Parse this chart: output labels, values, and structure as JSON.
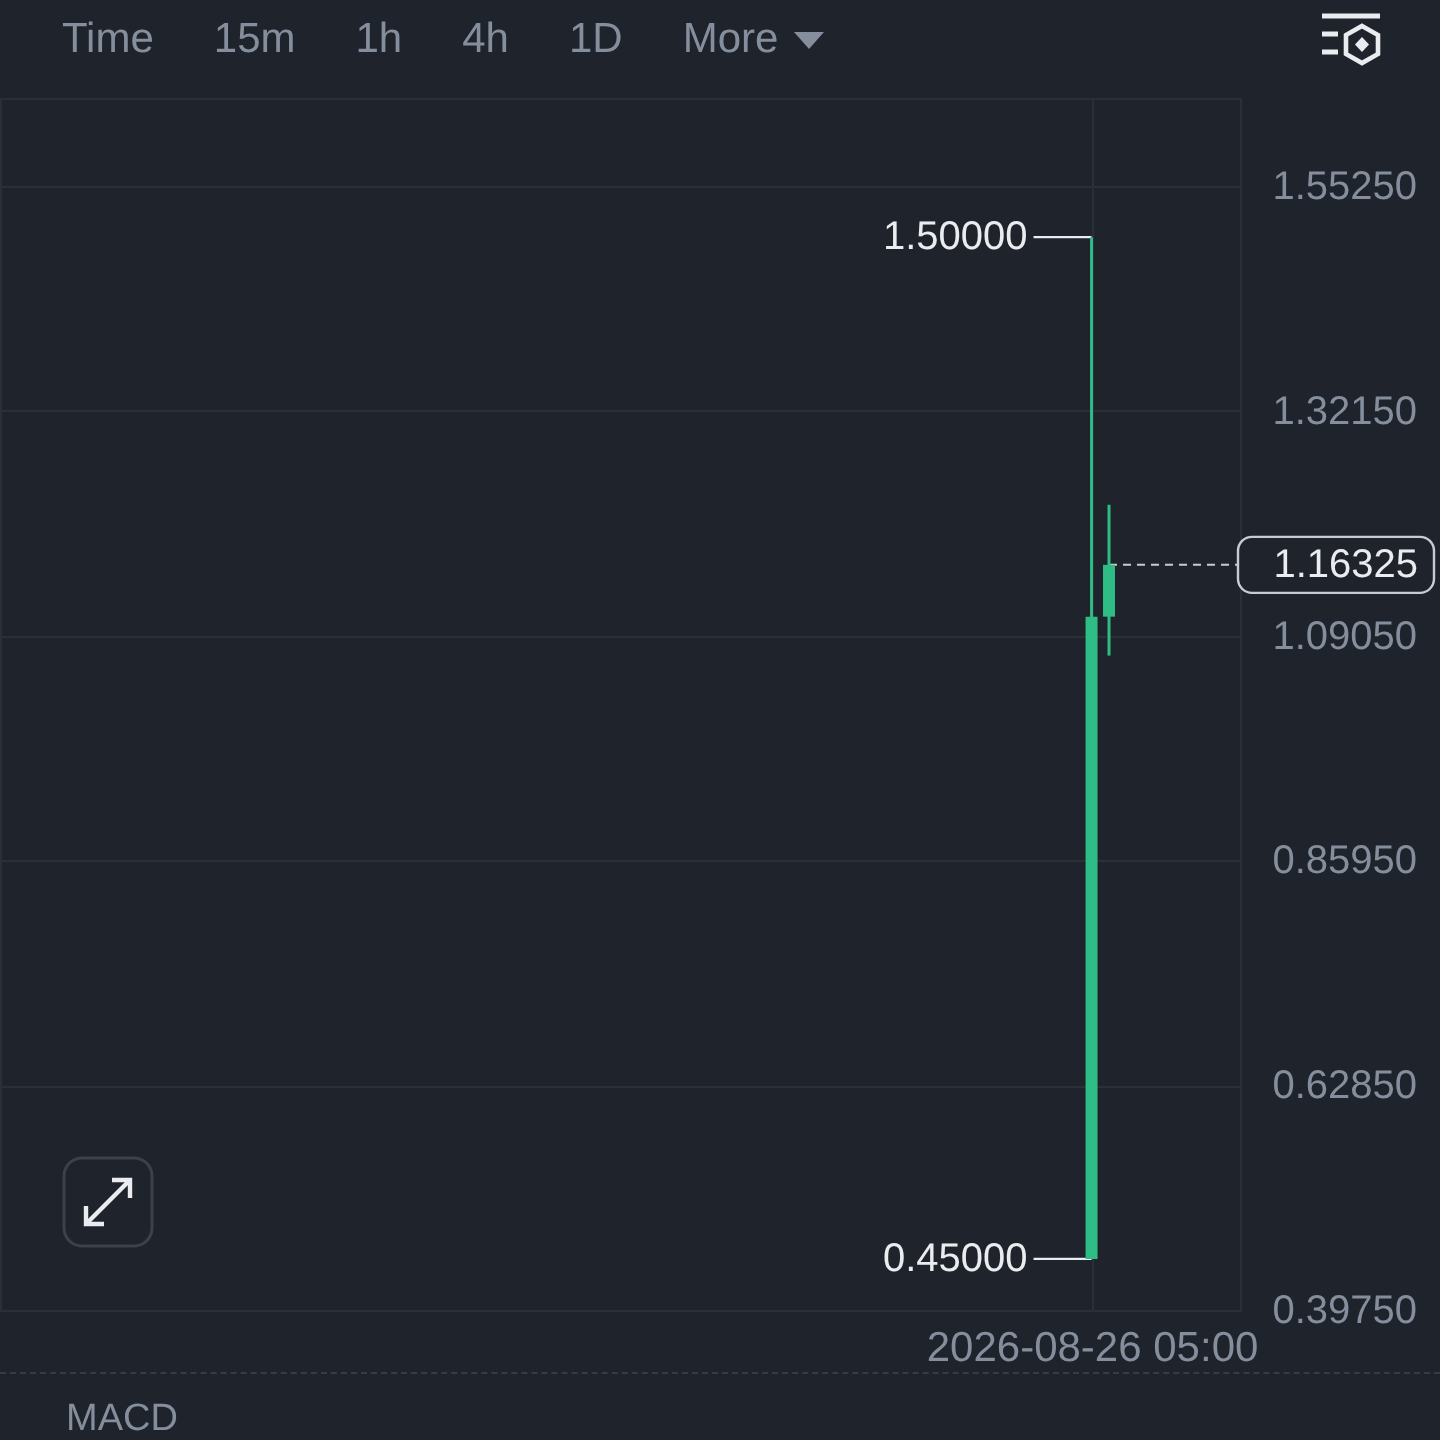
{
  "chart_data": {
    "type": "candlestick",
    "categories": [
      null,
      null,
      null,
      null,
      null,
      null,
      null,
      null,
      null,
      null,
      null,
      null,
      null,
      null,
      null,
      null,
      null,
      null,
      null,
      null,
      null,
      null,
      null,
      null,
      null,
      null,
      null,
      null,
      null,
      null,
      null,
      null,
      null,
      null,
      null,
      null,
      null,
      null,
      null,
      null,
      null,
      null,
      null,
      null,
      null,
      null,
      null,
      null,
      null,
      null,
      null,
      null,
      null,
      null,
      null,
      null,
      null,
      null,
      null,
      null,
      null,
      null,
      "2026-08-26 05:00",
      null,
      null,
      null,
      null,
      null,
      null,
      null,
      null
    ],
    "ohlc": [
      null,
      null,
      null,
      null,
      null,
      null,
      null,
      null,
      null,
      null,
      null,
      null,
      null,
      null,
      null,
      null,
      null,
      null,
      null,
      null,
      null,
      null,
      null,
      null,
      null,
      null,
      null,
      null,
      null,
      null,
      null,
      null,
      null,
      null,
      null,
      null,
      null,
      null,
      null,
      null,
      null,
      null,
      null,
      null,
      null,
      null,
      null,
      null,
      null,
      null,
      null,
      null,
      null,
      null,
      null,
      null,
      null,
      null,
      null,
      null,
      null,
      null,
      [
        0.45,
        1.5,
        0.45,
        1.11
      ],
      [
        1.11,
        1.225,
        1.07,
        1.16325
      ],
      null,
      null,
      null,
      null,
      null,
      null,
      null
    ],
    "colors": [
      null,
      null,
      null,
      null,
      null,
      null,
      null,
      null,
      null,
      null,
      null,
      null,
      null,
      null,
      null,
      null,
      null,
      null,
      null,
      null,
      null,
      null,
      null,
      null,
      null,
      null,
      null,
      null,
      null,
      null,
      null,
      null,
      null,
      null,
      null,
      null,
      null,
      null,
      null,
      null,
      null,
      null,
      null,
      null,
      null,
      null,
      null,
      null,
      null,
      null,
      null,
      null,
      null,
      null,
      null,
      null,
      null,
      null,
      null,
      null,
      null,
      null,
      "#2ebd85",
      "#2ebd85",
      null,
      null,
      null,
      null,
      null,
      null,
      null
    ],
    "ylim": [
      0.3975,
      1.643
    ],
    "yticks": [
      {
        "value": 0.3975,
        "label": "0.39750"
      },
      {
        "value": 0.6285,
        "label": "0.62850"
      },
      {
        "value": 0.8595,
        "label": "0.85950"
      },
      {
        "value": 1.0905,
        "label": "1.09050"
      },
      {
        "value": 1.3215,
        "label": "1.32150"
      },
      {
        "value": 1.5525,
        "label": "1.55250"
      }
    ],
    "grid": true,
    "ref_lines": [
      {
        "axis": "y",
        "value": 1.16325,
        "label": "1.16325",
        "color": "#c7ccd3",
        "line_style": "dashed"
      }
    ],
    "annotations": [
      "Time",
      "15m",
      "1h",
      "4h",
      "1D",
      "More",
      {
        "text": "1.50000",
        "x": "2026-08-26 05:00",
        "y": 1.5
      },
      {
        "text": "0.45000",
        "x": "2026-08-26 05:00",
        "y": 0.45
      },
      "MACD"
    ]
  }
}
